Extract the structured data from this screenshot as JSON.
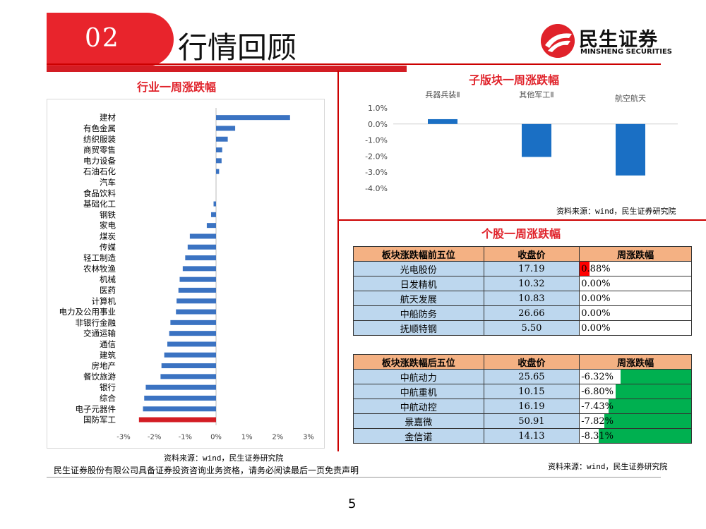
{
  "header": {
    "section_number": "02",
    "title": "行情回顾",
    "logo_cn": "民生证券",
    "logo_en": "MINSHENG SECURITIES"
  },
  "left_panel": {
    "title": "行业一周涨跌幅",
    "source": "资料来源：wind，民生证券研究院"
  },
  "subsector_panel": {
    "title": "子版块一周涨跌幅",
    "source": "资料来源：wind，民生证券研究院"
  },
  "stock_panel": {
    "title": "个股一周涨跌幅",
    "source": "资料来源：wind，民生证券研究院"
  },
  "top5_table": {
    "headers": [
      "板块涨跌幅前五位",
      "收盘价",
      "周涨跌幅"
    ],
    "rows": [
      {
        "name": "光电股份",
        "price": "17.19",
        "change": "0.88%",
        "value": 0.88
      },
      {
        "name": "日发精机",
        "price": "10.32",
        "change": "0.00%",
        "value": 0.0
      },
      {
        "name": "航天发展",
        "price": "10.83",
        "change": "0.00%",
        "value": 0.0
      },
      {
        "name": "中船防务",
        "price": "26.66",
        "change": "0.00%",
        "value": 0.0
      },
      {
        "name": "抚顺特钢",
        "price": "5.50",
        "change": "0.00%",
        "value": 0.0
      }
    ],
    "positive_color": "#ff0000"
  },
  "bottom5_table": {
    "headers": [
      "板块涨跌幅后五位",
      "收盘价",
      "周涨跌幅"
    ],
    "rows": [
      {
        "name": "中航动力",
        "price": "25.65",
        "change": "-6.32%",
        "value": -6.32
      },
      {
        "name": "中航重机",
        "price": "10.15",
        "change": "-6.80%",
        "value": -6.8
      },
      {
        "name": "中航动控",
        "price": "16.19",
        "change": "-7.43%",
        "value": -7.43
      },
      {
        "name": "景嘉微",
        "price": "50.91",
        "change": "-7.82%",
        "value": -7.82
      },
      {
        "name": "金信诺",
        "price": "14.13",
        "change": "-8.31%",
        "value": -8.31
      }
    ],
    "negative_color": "#00b050"
  },
  "footer": {
    "disclaimer": "民生证券股份有限公司具备证券投资咨询业务资格，请务必阅读最后一页免责声明",
    "page_number": "5"
  },
  "chart_data": [
    {
      "type": "bar",
      "orientation": "horizontal",
      "categories": [
        "建材",
        "有色金属",
        "纺织服装",
        "商贸零售",
        "电力设备",
        "石油石化",
        "汽车",
        "食品饮料",
        "基础化工",
        "钢铁",
        "家电",
        "煤炭",
        "传媒",
        "轻工制造",
        "农林牧渔",
        "机械",
        "医药",
        "计算机",
        "电力及公用事业",
        "非银行金融",
        "交通运输",
        "通信",
        "建筑",
        "房地产",
        "餐饮旅游",
        "银行",
        "综合",
        "电子元器件",
        "国防军工"
      ],
      "values": [
        2.4,
        0.62,
        0.38,
        0.2,
        0.18,
        0.1,
        0.0,
        0.0,
        -0.08,
        -0.16,
        -0.3,
        -0.85,
        -0.92,
        -1.0,
        -1.08,
        -1.18,
        -1.22,
        -1.28,
        -1.3,
        -1.48,
        -1.52,
        -1.58,
        -1.68,
        -1.77,
        -1.8,
        -2.28,
        -2.33,
        -2.37,
        -2.5
      ],
      "highlight_category": "国防军工",
      "colors": {
        "bar": "#3b73c2",
        "highlight": "#d31d24"
      },
      "xticks": [
        "-3%",
        "-2%",
        "-1%",
        "0%",
        "1%",
        "2%",
        "3%"
      ],
      "xlim": [
        -3,
        3
      ]
    },
    {
      "type": "bar",
      "categories": [
        "兵器兵装Ⅱ",
        "其他军工Ⅱ",
        "航空航天"
      ],
      "values": [
        0.3,
        -2.05,
        -3.2
      ],
      "colors": {
        "bar": "#1a6fc4"
      },
      "yticks": [
        "1.0%",
        "0.0%",
        "-1.0%",
        "-2.0%",
        "-3.0%",
        "-4.0%"
      ],
      "ylim": [
        -4,
        1
      ]
    }
  ]
}
